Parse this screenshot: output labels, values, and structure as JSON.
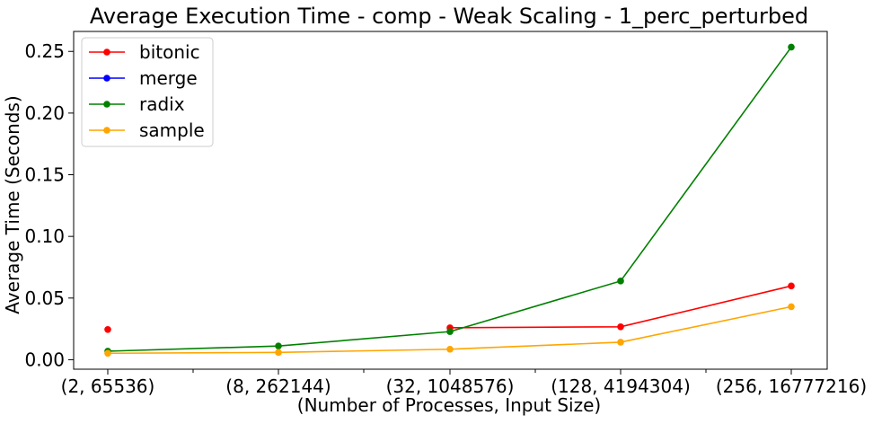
{
  "chart_data": {
    "type": "line",
    "title": "Average Execution Time - comp - Weak Scaling - 1_perc_perturbed",
    "xlabel": "(Number of Processes, Input Size)",
    "ylabel": "Average Time (Seconds)",
    "categories": [
      "(2, 65536)",
      "(8, 262144)",
      "(32, 1048576)",
      "(128, 4194304)",
      "(256, 16777216)"
    ],
    "ylim": [
      -0.0077,
      0.2662
    ],
    "yticks": [
      0.0,
      0.05,
      0.1,
      0.15,
      0.2,
      0.25
    ],
    "ytick_labels": [
      "0.00",
      "0.05",
      "0.10",
      "0.15",
      "0.20",
      "0.25"
    ],
    "grid": false,
    "legend_position": "top-left",
    "series": [
      {
        "name": "bitonic",
        "color": "#ff0000",
        "values": [
          0.0245,
          null,
          0.0259,
          0.0267,
          0.0598
        ]
      },
      {
        "name": "merge",
        "color": "#0000ff",
        "values": [
          null,
          null,
          null,
          null,
          null
        ]
      },
      {
        "name": "radix",
        "color": "#008000",
        "values": [
          0.0069,
          0.0111,
          0.0228,
          0.0638,
          0.2535
        ]
      },
      {
        "name": "sample",
        "color": "#ffa500",
        "values": [
          0.0052,
          0.0059,
          0.0085,
          0.0142,
          0.043
        ]
      }
    ]
  }
}
